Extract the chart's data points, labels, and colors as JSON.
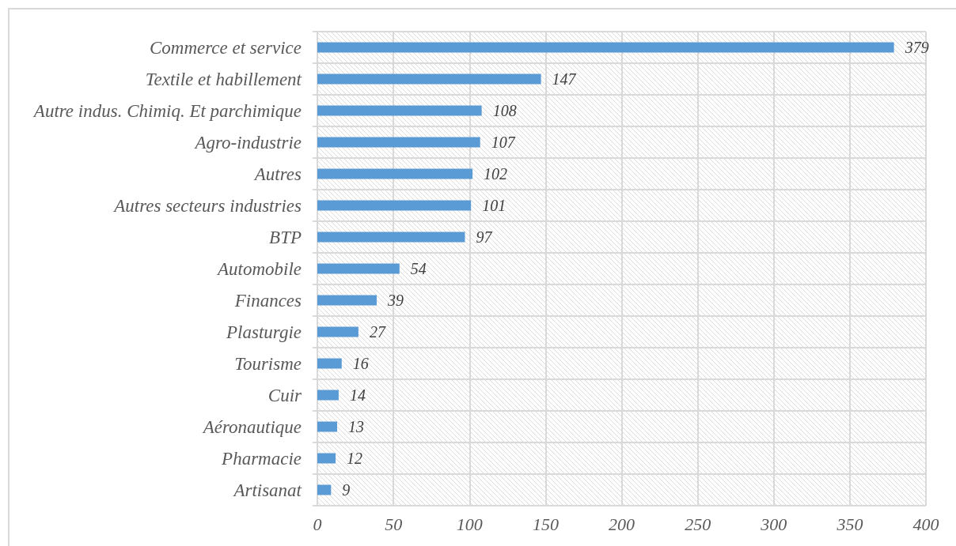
{
  "chart_data": {
    "type": "bar",
    "orientation": "horizontal",
    "categories": [
      "Commerce et service",
      "Textile et habillement",
      "Autre indus. Chimiq. Et parchimique",
      "Agro-industrie",
      "Autres",
      "Autres secteurs industries",
      "BTP",
      "Automobile",
      "Finances",
      "Plasturgie",
      "Tourisme",
      "Cuir",
      "Aéronautique",
      "Pharmacie",
      "Artisanat"
    ],
    "values": [
      379,
      147,
      108,
      107,
      102,
      101,
      97,
      54,
      39,
      27,
      16,
      14,
      13,
      12,
      9
    ],
    "color": "#5b9bd5",
    "xlim": [
      0,
      400
    ],
    "xticks": [
      0,
      50,
      100,
      150,
      200,
      250,
      300,
      350,
      400
    ],
    "grid": true,
    "data_labels": true
  }
}
